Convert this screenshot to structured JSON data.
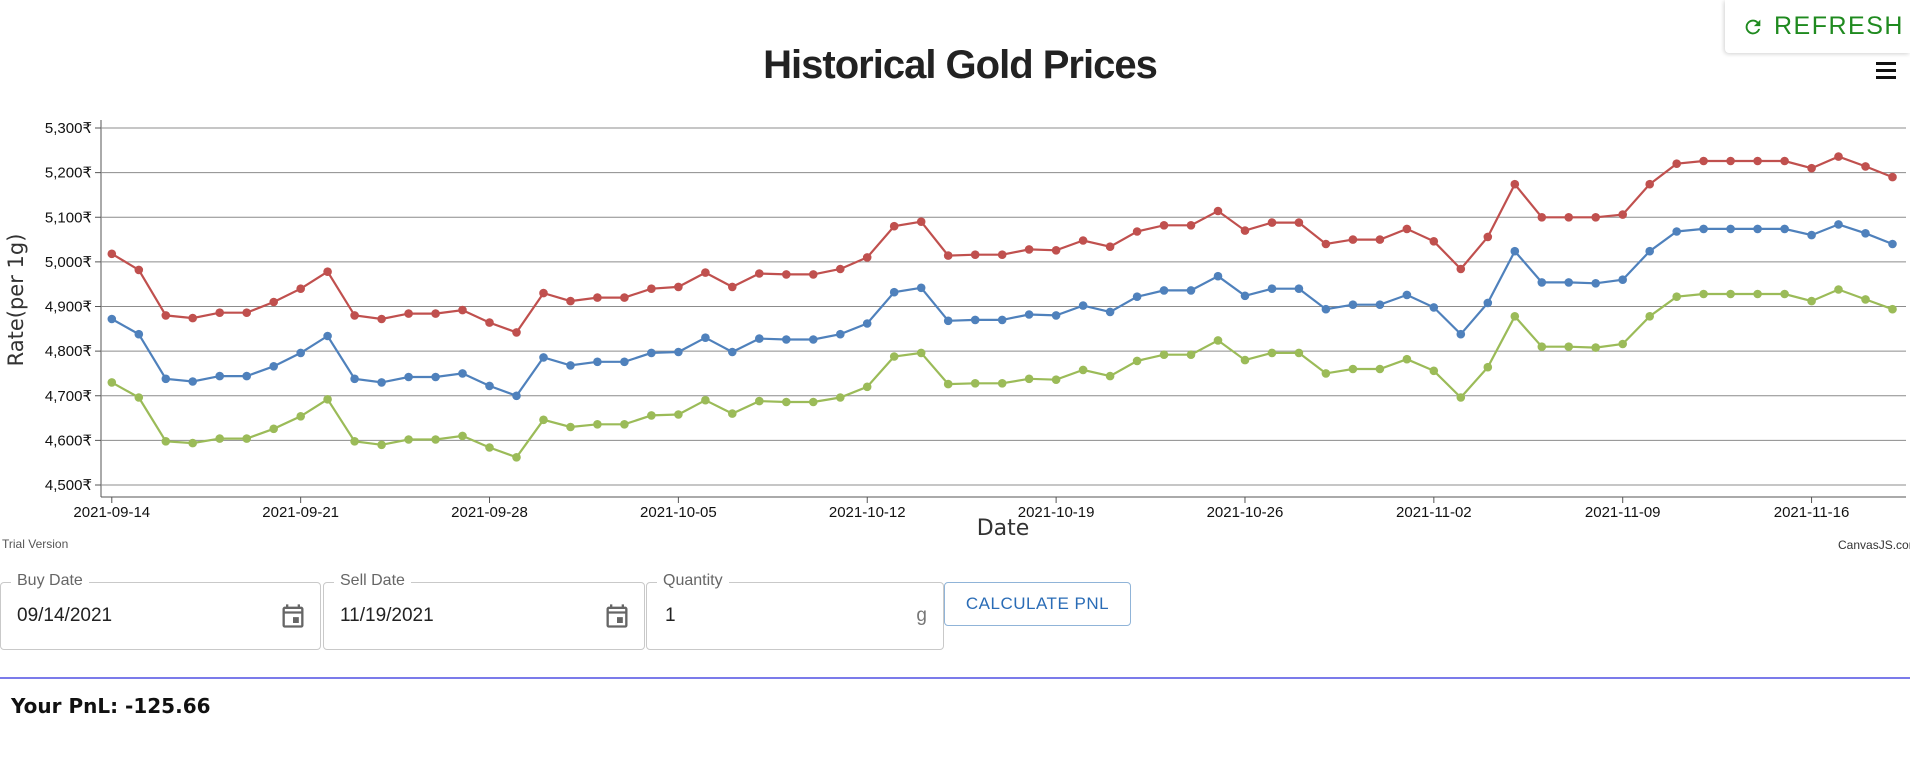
{
  "refresh": {
    "label": "REFRESH",
    "icon": "refresh-icon",
    "color": "#1f8a1f"
  },
  "menu": {
    "icon": "hamburger-menu-icon"
  },
  "chart_data": {
    "type": "line",
    "title": "Historical Gold Prices",
    "xlabel": "Date",
    "ylabel": "Rate(per 1g)",
    "ylim": [
      4500,
      5300
    ],
    "y_ticks": [
      "4,500₹",
      "4,600₹",
      "4,700₹",
      "4,800₹",
      "4,900₹",
      "5,000₹",
      "5,100₹",
      "5,200₹",
      "5,300₹"
    ],
    "x_ticks": [
      "2021-09-14",
      "2021-09-21",
      "2021-09-28",
      "2021-10-05",
      "2021-10-12",
      "2021-10-19",
      "2021-10-26",
      "2021-11-02",
      "2021-11-09",
      "2021-11-16"
    ],
    "x_start": "2021-09-14",
    "x_end": "2021-11-19",
    "grid": true,
    "series": [
      {
        "color": "#c0504e",
        "points": [
          [
            "2021-09-14",
            5018
          ],
          [
            "2021-09-15",
            4982
          ],
          [
            "2021-09-16",
            4880
          ],
          [
            "2021-09-17",
            4874
          ],
          [
            "2021-09-18",
            4886
          ],
          [
            "2021-09-19",
            4886
          ],
          [
            "2021-09-20",
            4910
          ],
          [
            "2021-09-21",
            4940
          ],
          [
            "2021-09-22",
            4978
          ],
          [
            "2021-09-23",
            4880
          ],
          [
            "2021-09-24",
            4872
          ],
          [
            "2021-09-25",
            4884
          ],
          [
            "2021-09-26",
            4884
          ],
          [
            "2021-09-27",
            4892
          ],
          [
            "2021-09-28",
            4864
          ],
          [
            "2021-09-29",
            4842
          ],
          [
            "2021-09-30",
            4930
          ],
          [
            "2021-10-01",
            4912
          ],
          [
            "2021-10-02",
            4920
          ],
          [
            "2021-10-03",
            4920
          ],
          [
            "2021-10-04",
            4940
          ],
          [
            "2021-10-05",
            4944
          ],
          [
            "2021-10-06",
            4976
          ],
          [
            "2021-10-07",
            4944
          ],
          [
            "2021-10-08",
            4974
          ],
          [
            "2021-10-09",
            4972
          ],
          [
            "2021-10-10",
            4972
          ],
          [
            "2021-10-11",
            4984
          ],
          [
            "2021-10-12",
            5010
          ],
          [
            "2021-10-13",
            5080
          ],
          [
            "2021-10-14",
            5090
          ],
          [
            "2021-10-15",
            5014
          ],
          [
            "2021-10-16",
            5016
          ],
          [
            "2021-10-17",
            5016
          ],
          [
            "2021-10-18",
            5028
          ],
          [
            "2021-10-19",
            5026
          ],
          [
            "2021-10-20",
            5048
          ],
          [
            "2021-10-21",
            5034
          ],
          [
            "2021-10-22",
            5068
          ],
          [
            "2021-10-23",
            5082
          ],
          [
            "2021-10-24",
            5082
          ],
          [
            "2021-10-25",
            5114
          ],
          [
            "2021-10-26",
            5070
          ],
          [
            "2021-10-27",
            5088
          ],
          [
            "2021-10-28",
            5088
          ],
          [
            "2021-10-29",
            5040
          ],
          [
            "2021-10-30",
            5050
          ],
          [
            "2021-10-31",
            5050
          ],
          [
            "2021-11-01",
            5074
          ],
          [
            "2021-11-02",
            5046
          ],
          [
            "2021-11-03",
            4984
          ],
          [
            "2021-11-04",
            5056
          ],
          [
            "2021-11-05",
            5174
          ],
          [
            "2021-11-06",
            5100
          ],
          [
            "2021-11-07",
            5100
          ],
          [
            "2021-11-08",
            5100
          ],
          [
            "2021-11-09",
            5106
          ],
          [
            "2021-11-10",
            5174
          ],
          [
            "2021-11-11",
            5220
          ],
          [
            "2021-11-12",
            5226
          ],
          [
            "2021-11-13",
            5226
          ],
          [
            "2021-11-14",
            5226
          ],
          [
            "2021-11-15",
            5226
          ],
          [
            "2021-11-16",
            5210
          ],
          [
            "2021-11-17",
            5236
          ],
          [
            "2021-11-18",
            5214
          ],
          [
            "2021-11-19",
            5190
          ]
        ]
      },
      {
        "color": "#4f81bc",
        "points": [
          [
            "2021-09-14",
            4872
          ],
          [
            "2021-09-15",
            4838
          ],
          [
            "2021-09-16",
            4738
          ],
          [
            "2021-09-17",
            4732
          ],
          [
            "2021-09-18",
            4744
          ],
          [
            "2021-09-19",
            4744
          ],
          [
            "2021-09-20",
            4766
          ],
          [
            "2021-09-21",
            4796
          ],
          [
            "2021-09-22",
            4834
          ],
          [
            "2021-09-23",
            4738
          ],
          [
            "2021-09-24",
            4730
          ],
          [
            "2021-09-25",
            4742
          ],
          [
            "2021-09-26",
            4742
          ],
          [
            "2021-09-27",
            4750
          ],
          [
            "2021-09-28",
            4722
          ],
          [
            "2021-09-29",
            4700
          ],
          [
            "2021-09-30",
            4786
          ],
          [
            "2021-10-01",
            4768
          ],
          [
            "2021-10-02",
            4776
          ],
          [
            "2021-10-03",
            4776
          ],
          [
            "2021-10-04",
            4796
          ],
          [
            "2021-10-05",
            4798
          ],
          [
            "2021-10-06",
            4830
          ],
          [
            "2021-10-07",
            4798
          ],
          [
            "2021-10-08",
            4828
          ],
          [
            "2021-10-09",
            4826
          ],
          [
            "2021-10-10",
            4826
          ],
          [
            "2021-10-11",
            4838
          ],
          [
            "2021-10-12",
            4862
          ],
          [
            "2021-10-13",
            4932
          ],
          [
            "2021-10-14",
            4942
          ],
          [
            "2021-10-15",
            4868
          ],
          [
            "2021-10-16",
            4870
          ],
          [
            "2021-10-17",
            4870
          ],
          [
            "2021-10-18",
            4882
          ],
          [
            "2021-10-19",
            4880
          ],
          [
            "2021-10-20",
            4902
          ],
          [
            "2021-10-21",
            4888
          ],
          [
            "2021-10-22",
            4922
          ],
          [
            "2021-10-23",
            4936
          ],
          [
            "2021-10-24",
            4936
          ],
          [
            "2021-10-25",
            4968
          ],
          [
            "2021-10-26",
            4924
          ],
          [
            "2021-10-27",
            4940
          ],
          [
            "2021-10-28",
            4940
          ],
          [
            "2021-10-29",
            4894
          ],
          [
            "2021-10-30",
            4904
          ],
          [
            "2021-10-31",
            4904
          ],
          [
            "2021-11-01",
            4926
          ],
          [
            "2021-11-02",
            4898
          ],
          [
            "2021-11-03",
            4838
          ],
          [
            "2021-11-04",
            4908
          ],
          [
            "2021-11-05",
            5024
          ],
          [
            "2021-11-06",
            4954
          ],
          [
            "2021-11-07",
            4954
          ],
          [
            "2021-11-08",
            4952
          ],
          [
            "2021-11-09",
            4960
          ],
          [
            "2021-11-10",
            5024
          ],
          [
            "2021-11-11",
            5068
          ],
          [
            "2021-11-12",
            5074
          ],
          [
            "2021-11-13",
            5074
          ],
          [
            "2021-11-14",
            5074
          ],
          [
            "2021-11-15",
            5074
          ],
          [
            "2021-11-16",
            5060
          ],
          [
            "2021-11-17",
            5084
          ],
          [
            "2021-11-18",
            5064
          ],
          [
            "2021-11-19",
            5040
          ]
        ]
      },
      {
        "color": "#9bbb58",
        "points": [
          [
            "2021-09-14",
            4730
          ],
          [
            "2021-09-15",
            4696
          ],
          [
            "2021-09-16",
            4598
          ],
          [
            "2021-09-17",
            4594
          ],
          [
            "2021-09-18",
            4604
          ],
          [
            "2021-09-19",
            4604
          ],
          [
            "2021-09-20",
            4626
          ],
          [
            "2021-09-21",
            4654
          ],
          [
            "2021-09-22",
            4692
          ],
          [
            "2021-09-23",
            4598
          ],
          [
            "2021-09-24",
            4590
          ],
          [
            "2021-09-25",
            4602
          ],
          [
            "2021-09-26",
            4602
          ],
          [
            "2021-09-27",
            4610
          ],
          [
            "2021-09-28",
            4584
          ],
          [
            "2021-09-29",
            4562
          ],
          [
            "2021-09-30",
            4646
          ],
          [
            "2021-10-01",
            4630
          ],
          [
            "2021-10-02",
            4636
          ],
          [
            "2021-10-03",
            4636
          ],
          [
            "2021-10-04",
            4656
          ],
          [
            "2021-10-05",
            4658
          ],
          [
            "2021-10-06",
            4690
          ],
          [
            "2021-10-07",
            4660
          ],
          [
            "2021-10-08",
            4688
          ],
          [
            "2021-10-09",
            4686
          ],
          [
            "2021-10-10",
            4686
          ],
          [
            "2021-10-11",
            4696
          ],
          [
            "2021-10-12",
            4720
          ],
          [
            "2021-10-13",
            4788
          ],
          [
            "2021-10-14",
            4796
          ],
          [
            "2021-10-15",
            4726
          ],
          [
            "2021-10-16",
            4728
          ],
          [
            "2021-10-17",
            4728
          ],
          [
            "2021-10-18",
            4738
          ],
          [
            "2021-10-19",
            4736
          ],
          [
            "2021-10-20",
            4758
          ],
          [
            "2021-10-21",
            4744
          ],
          [
            "2021-10-22",
            4778
          ],
          [
            "2021-10-23",
            4792
          ],
          [
            "2021-10-24",
            4792
          ],
          [
            "2021-10-25",
            4824
          ],
          [
            "2021-10-26",
            4780
          ],
          [
            "2021-10-27",
            4796
          ],
          [
            "2021-10-28",
            4796
          ],
          [
            "2021-10-29",
            4750
          ],
          [
            "2021-10-30",
            4760
          ],
          [
            "2021-10-31",
            4760
          ],
          [
            "2021-11-01",
            4782
          ],
          [
            "2021-11-02",
            4756
          ],
          [
            "2021-11-03",
            4696
          ],
          [
            "2021-11-04",
            4764
          ],
          [
            "2021-11-05",
            4878
          ],
          [
            "2021-11-06",
            4810
          ],
          [
            "2021-11-07",
            4810
          ],
          [
            "2021-11-08",
            4808
          ],
          [
            "2021-11-09",
            4816
          ],
          [
            "2021-11-10",
            4878
          ],
          [
            "2021-11-11",
            4922
          ],
          [
            "2021-11-12",
            4928
          ],
          [
            "2021-11-13",
            4928
          ],
          [
            "2021-11-14",
            4928
          ],
          [
            "2021-11-15",
            4928
          ],
          [
            "2021-11-16",
            4912
          ],
          [
            "2021-11-17",
            4938
          ],
          [
            "2021-11-18",
            4916
          ],
          [
            "2021-11-19",
            4894
          ]
        ]
      }
    ]
  },
  "chart_footer": {
    "trial": "Trial Version",
    "credit": "CanvasJS.cor"
  },
  "form": {
    "buy_date": {
      "label": "Buy Date",
      "value": "09/14/2021",
      "icon": "calendar-icon"
    },
    "sell_date": {
      "label": "Sell Date",
      "value": "11/19/2021",
      "icon": "calendar-icon"
    },
    "quantity": {
      "label": "Quantity",
      "value": "1",
      "unit": "g"
    },
    "calculate_label": "CALCULATE PNL"
  },
  "result": {
    "text": "Your PnL: -125.66"
  }
}
